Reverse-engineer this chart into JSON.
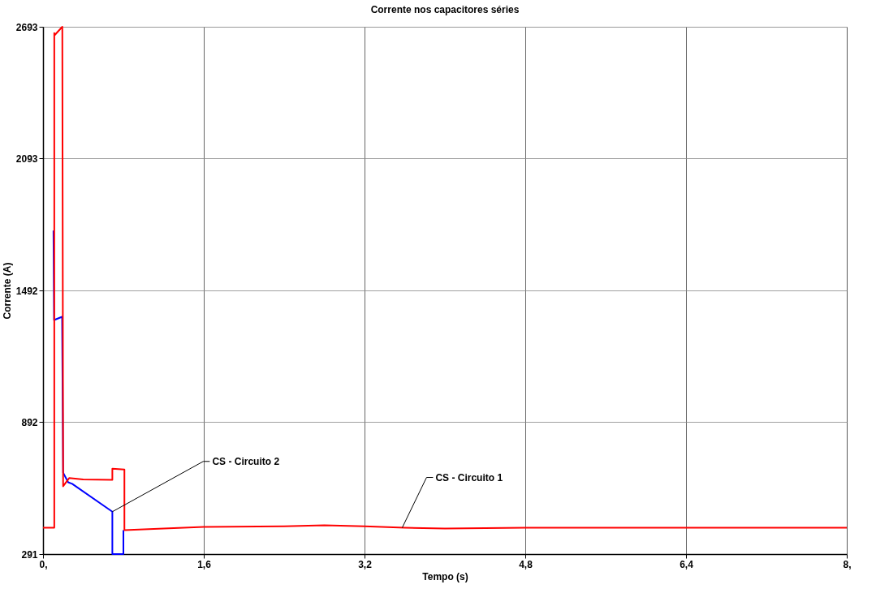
{
  "chart_data": {
    "type": "line",
    "title": "Corrente nos capacitores séries",
    "xlabel": "Tempo (s)",
    "ylabel": "Corrente (A)",
    "xlim": [
      0,
      8
    ],
    "ylim": [
      291,
      2693
    ],
    "xticks": [
      {
        "value": 0,
        "label": "0,"
      },
      {
        "value": 1.6,
        "label": "1,6"
      },
      {
        "value": 3.2,
        "label": "3,2"
      },
      {
        "value": 4.8,
        "label": "4,8"
      },
      {
        "value": 6.4,
        "label": "6,4"
      },
      {
        "value": 8,
        "label": "8,"
      }
    ],
    "yticks": [
      291,
      892,
      1492,
      2093,
      2693
    ],
    "grid": true,
    "line_style": "solid",
    "marker": "none",
    "series": [
      {
        "color": "#0000ff",
        "x": [
          0.104,
          0.11,
          0.19,
          0.2,
          0.25,
          0.29,
          0.69,
          0.69,
          0.8,
          0.8
        ],
        "values": [
          1765,
          1357,
          1372,
          662,
          618,
          611,
          484,
          291,
          291,
          400
        ]
      },
      {
        "color": "#ff0000",
        "x": [
          0,
          0.112,
          0.112,
          0.118,
          0.192,
          0.2,
          0.26,
          0.4,
          0.69,
          0.69,
          0.81,
          0.81,
          1.2,
          1.6,
          2.4,
          2.8,
          3.2,
          3.6,
          4.0,
          4.8,
          6.4,
          8
        ],
        "values": [
          411,
          411,
          2664,
          2656,
          2693,
          600,
          637,
          631,
          629,
          680,
          676,
          400,
          407,
          415,
          418,
          422,
          418,
          411,
          407,
          411,
          411,
          411
        ]
      }
    ],
    "annotations": [
      {
        "text": "CS - Circuito 2",
        "x": 0.69,
        "y": 484
      },
      {
        "text": "CS - Circuito 1",
        "x": 3.575,
        "y": 411
      }
    ]
  }
}
